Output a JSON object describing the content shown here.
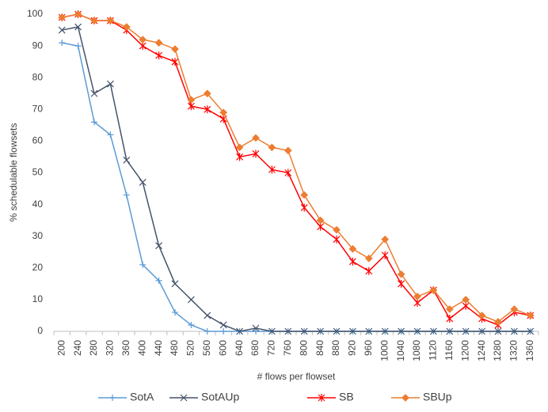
{
  "chart_data": {
    "type": "line",
    "x_label": "# flows per flowset",
    "y_label": "% schedulable flowsets",
    "categories": [
      "200",
      "240",
      "280",
      "320",
      "360",
      "400",
      "440",
      "480",
      "520",
      "560",
      "600",
      "640",
      "680",
      "720",
      "760",
      "800",
      "840",
      "880",
      "920",
      "960",
      "1000",
      "1040",
      "1080",
      "1120",
      "1160",
      "1200",
      "1240",
      "1280",
      "1320",
      "1360"
    ],
    "series": [
      {
        "name": "SotA",
        "color": "#5b9bd5",
        "marker": "plus",
        "values": [
          91,
          90,
          66,
          62,
          43,
          21,
          16,
          6,
          2,
          0,
          0,
          0,
          0,
          0,
          0,
          0,
          0,
          0,
          0,
          0,
          0,
          0,
          0,
          0,
          0,
          0,
          0,
          0,
          0,
          0
        ]
      },
      {
        "name": "SotAUp",
        "color": "#44546a",
        "marker": "cross",
        "values": [
          95,
          96,
          75,
          78,
          54,
          47,
          27,
          15,
          10,
          5,
          2,
          0,
          1,
          0,
          0,
          0,
          0,
          0,
          0,
          0,
          0,
          0,
          0,
          0,
          0,
          0,
          0,
          0,
          0,
          0
        ]
      },
      {
        "name": "SB",
        "color": "#ff0000",
        "marker": "star",
        "values": [
          99,
          100,
          98,
          98,
          95,
          90,
          87,
          85,
          71,
          70,
          67,
          55,
          56,
          51,
          50,
          39,
          33,
          29,
          22,
          19,
          24,
          15,
          9,
          13,
          4,
          8,
          4,
          2,
          6,
          5
        ]
      },
      {
        "name": "SBUp",
        "color": "#ed7d31",
        "marker": "diamond",
        "values": [
          99,
          100,
          98,
          98,
          96,
          92,
          91,
          89,
          73,
          75,
          69,
          58,
          61,
          58,
          57,
          43,
          35,
          32,
          26,
          23,
          29,
          18,
          11,
          13,
          7,
          10,
          5,
          3,
          7,
          5
        ]
      }
    ],
    "ylim": [
      0,
      100
    ],
    "yticks": [
      0,
      10,
      20,
      30,
      40,
      50,
      60,
      70,
      80,
      90,
      100
    ],
    "grid": false,
    "legend": "bottom"
  }
}
